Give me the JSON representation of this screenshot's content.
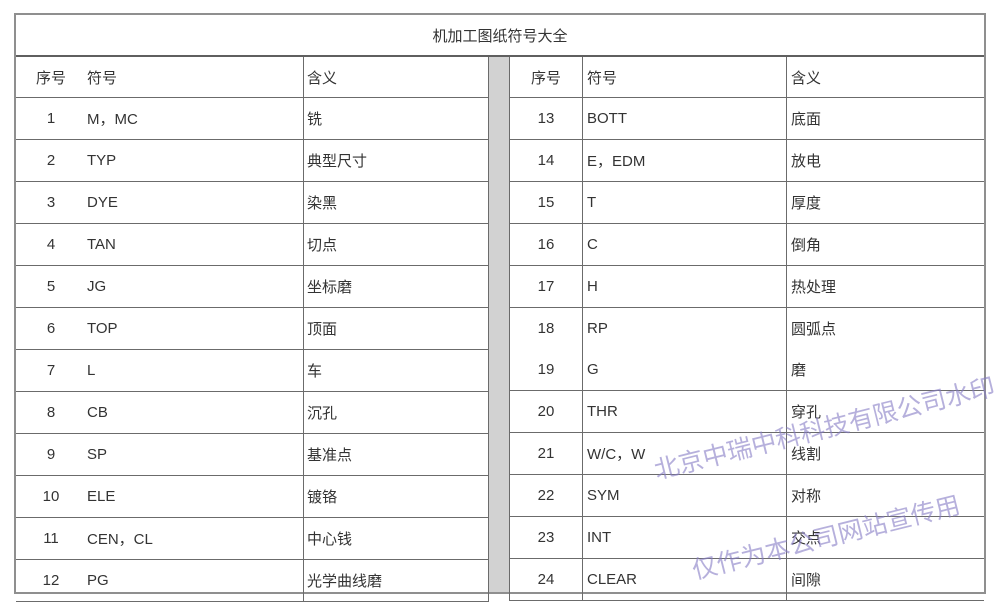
{
  "title": "机加工图纸符号大全",
  "columns": {
    "index": "序号",
    "symbol": "符号",
    "meaning": "含义"
  },
  "left_rows": [
    {
      "no": "1",
      "symbol": "M，MC",
      "meaning": "铣"
    },
    {
      "no": "2",
      "symbol": "TYP",
      "meaning": "典型尺寸"
    },
    {
      "no": "3",
      "symbol": "DYE",
      "meaning": "染黑"
    },
    {
      "no": "4",
      "symbol": "TAN",
      "meaning": "切点"
    },
    {
      "no": "5",
      "symbol": "JG",
      "meaning": "坐标磨"
    },
    {
      "no": "6",
      "symbol": "TOP",
      "meaning": "顶面"
    },
    {
      "no": "7",
      "symbol": "L",
      "meaning": "车"
    },
    {
      "no": "8",
      "symbol": "CB",
      "meaning": "沉孔"
    },
    {
      "no": "9",
      "symbol": "SP",
      "meaning": "基准点"
    },
    {
      "no": "10",
      "symbol": "ELE",
      "meaning": "镀铬"
    },
    {
      "no": "11",
      "symbol": "CEN，CL",
      "meaning": "中心钱"
    },
    {
      "no": "12",
      "symbol": "PG",
      "meaning": "光学曲线磨"
    }
  ],
  "right_rows": [
    {
      "no": "13",
      "symbol": "BOTT",
      "meaning": "底面"
    },
    {
      "no": "14",
      "symbol": "E，EDM",
      "meaning": "放电"
    },
    {
      "no": "15",
      "symbol": "T",
      "meaning": "厚度"
    },
    {
      "no": "16",
      "symbol": "C",
      "meaning": "倒角"
    },
    {
      "no": "17",
      "symbol": "H",
      "meaning": "热处理"
    },
    {
      "no": "18",
      "symbol": "RP",
      "meaning": "圆弧点"
    },
    {
      "no": "19",
      "symbol": "G",
      "meaning": "磨"
    },
    {
      "no": "20",
      "symbol": "THR",
      "meaning": "穿孔"
    },
    {
      "no": "21",
      "symbol": "W/C，W",
      "meaning": "线割"
    },
    {
      "no": "22",
      "symbol": "SYM",
      "meaning": "对称"
    },
    {
      "no": "23",
      "symbol": "INT",
      "meaning": "交点"
    },
    {
      "no": "24",
      "symbol": "CLEAR",
      "meaning": "间隙"
    }
  ],
  "watermark": {
    "line1": "北京中瑞中科科技有限公司水印",
    "line2": "仅作为本公司网站宣传用",
    "color": "#867cc4"
  },
  "colors": {
    "frame_border": "#8f8f8f",
    "cell_border": "#6b6b6b",
    "divider_band": "#d2d2d2",
    "text": "#333333"
  }
}
